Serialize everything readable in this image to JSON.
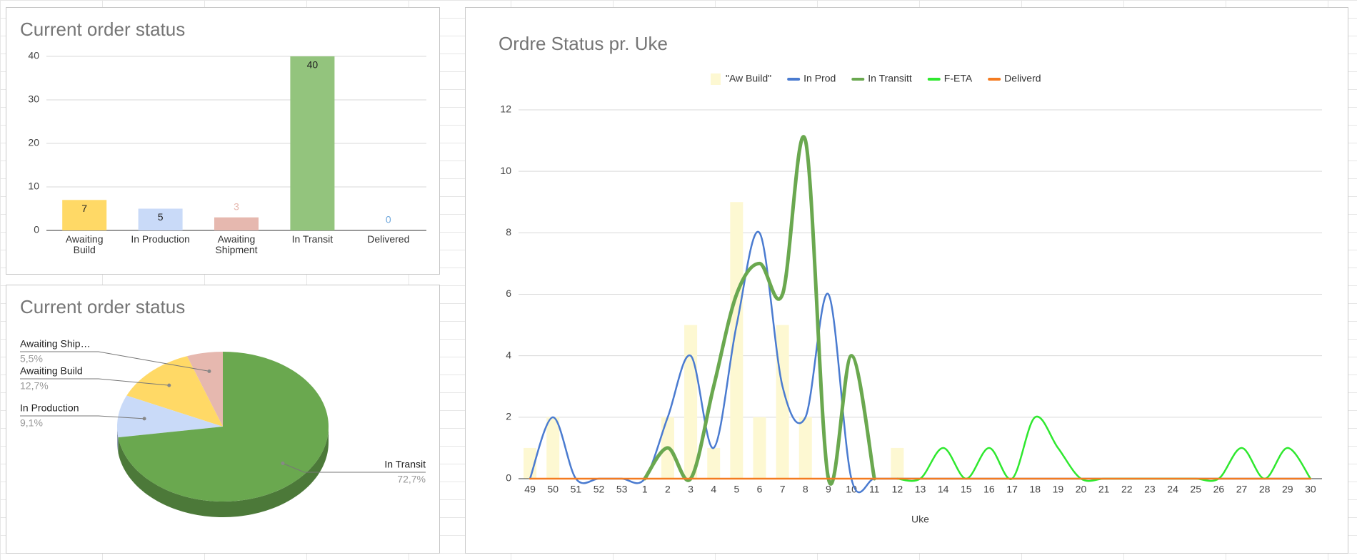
{
  "chart_data": [
    {
      "type": "bar",
      "title": "Current order status",
      "categories": [
        "Awaiting Build",
        "In Production",
        "Awaiting Shipment",
        "In Transit",
        "Delivered"
      ],
      "values": [
        7,
        5,
        3,
        40,
        0
      ],
      "colors": [
        "#ffd966",
        "#c9daf8",
        "#e6b8af",
        "#93c47d",
        "#6fa8dc"
      ],
      "ylim": [
        0,
        40
      ],
      "yticks": [
        0,
        10,
        20,
        30,
        40
      ],
      "grid": true
    },
    {
      "type": "pie",
      "title": "Current order status",
      "three_d": true,
      "categories": [
        "Awaiting Ship…",
        "Awaiting Build",
        "In Production",
        "In Transit"
      ],
      "values": [
        5.5,
        12.7,
        9.1,
        72.7
      ],
      "value_labels": [
        "5,5%",
        "12,7%",
        "9,1%",
        "72,7%"
      ],
      "colors": [
        "#e6b8af",
        "#ffd966",
        "#c9daf8",
        "#6aa84f"
      ]
    },
    {
      "type": "combo",
      "title": "Ordre Status pr. Uke",
      "xlabel": "Uke",
      "categories": [
        "49",
        "50",
        "51",
        "52",
        "53",
        "1",
        "2",
        "3",
        "4",
        "5",
        "6",
        "7",
        "8",
        "9",
        "10",
        "11",
        "12",
        "13",
        "14",
        "15",
        "16",
        "17",
        "18",
        "19",
        "20",
        "21",
        "22",
        "23",
        "24",
        "25",
        "26",
        "27",
        "28",
        "29",
        "30"
      ],
      "ylim": [
        0,
        12
      ],
      "yticks": [
        0,
        2,
        4,
        6,
        8,
        10,
        12
      ],
      "grid": true,
      "legend": "top",
      "series": [
        {
          "name": "\"Aw Build\"",
          "type": "bar",
          "color": "#fdf8d2",
          "values": [
            1,
            2,
            0,
            0,
            0,
            0,
            2,
            5,
            1,
            9,
            2,
            5,
            2,
            0,
            0,
            0,
            1,
            0,
            0,
            0,
            0,
            0,
            0,
            0,
            0,
            0,
            0,
            0,
            0,
            0,
            0,
            0,
            0,
            0,
            0
          ]
        },
        {
          "name": "In Prod",
          "type": "line",
          "color": "#4a7bd0",
          "width": 2.5,
          "values": [
            0,
            2,
            0,
            0,
            0,
            0,
            2,
            4,
            1,
            5,
            8,
            3,
            2,
            6,
            0,
            0,
            0,
            0,
            0,
            0,
            0,
            0,
            0,
            0,
            0,
            0,
            0,
            0,
            0,
            0,
            0,
            0,
            0,
            0,
            0
          ]
        },
        {
          "name": "In Transitt",
          "type": "line",
          "color": "#6aa84f",
          "width": 5,
          "values": [
            null,
            null,
            null,
            null,
            null,
            0,
            1,
            0,
            3,
            6,
            7,
            6,
            11,
            0,
            4,
            0,
            null,
            null,
            null,
            null,
            null,
            null,
            null,
            null,
            null,
            null,
            null,
            null,
            null,
            null,
            null,
            null,
            null,
            null,
            null
          ]
        },
        {
          "name": "F-ETA",
          "type": "line",
          "color": "#2fe82f",
          "width": 2.5,
          "values": [
            null,
            null,
            null,
            null,
            null,
            null,
            null,
            null,
            null,
            null,
            null,
            null,
            null,
            null,
            null,
            null,
            0,
            0,
            1,
            0,
            1,
            0,
            2,
            1,
            0,
            0,
            0,
            0,
            0,
            0,
            0,
            1,
            0,
            1,
            0
          ]
        },
        {
          "name": "Deliverd",
          "type": "line",
          "color": "#f47b20",
          "width": 2.5,
          "values": [
            0,
            0,
            0,
            0,
            0,
            0,
            0,
            0,
            0,
            0,
            0,
            0,
            0,
            0,
            0,
            0,
            0,
            0,
            0,
            0,
            0,
            0,
            0,
            0,
            0,
            0,
            0,
            0,
            0,
            0,
            0,
            0,
            0,
            0,
            0
          ]
        }
      ]
    }
  ]
}
